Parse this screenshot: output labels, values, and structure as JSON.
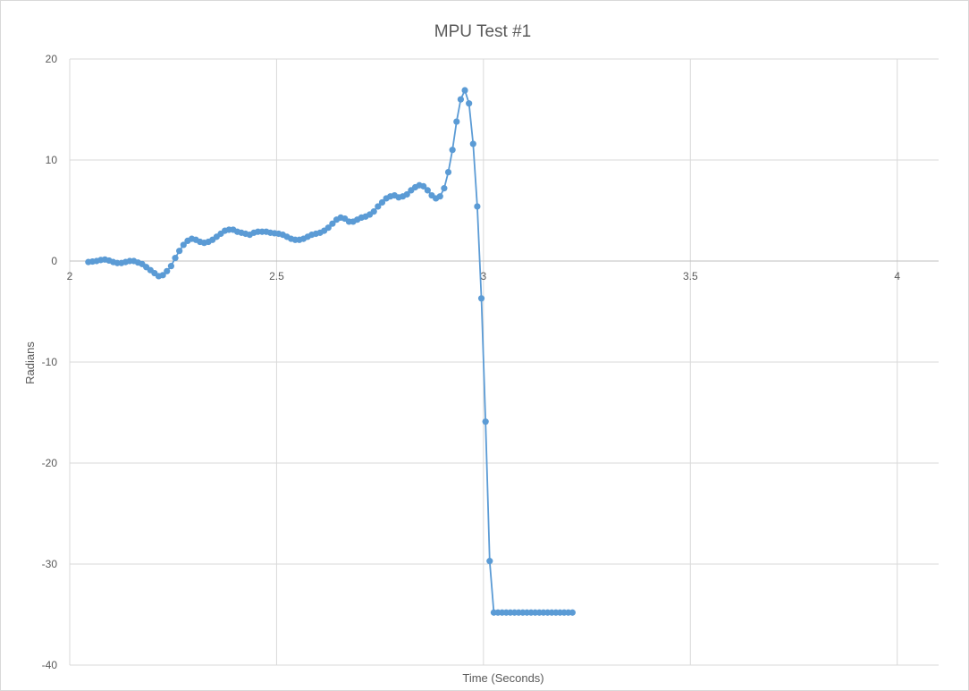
{
  "chart_data": {
    "type": "scatter",
    "title": "MPU Test #1",
    "xlabel": "Time (Seconds)",
    "ylabel": "Radians",
    "xlim": [
      2,
      4.1
    ],
    "ylim": [
      -40,
      20
    ],
    "x_ticks": [
      "2",
      "2.5",
      "3",
      "3.5",
      "4"
    ],
    "y_ticks": [
      "20",
      "10",
      "0",
      "-10",
      "-20",
      "-30",
      "-40"
    ],
    "grid": true,
    "legend": "none",
    "series_color": "#5b9bd5",
    "series": [
      {
        "x": [
          2.045,
          2.055,
          2.065,
          2.075,
          2.085,
          2.095,
          2.105,
          2.115,
          2.125,
          2.135,
          2.145,
          2.155,
          2.165,
          2.175,
          2.185,
          2.195,
          2.205,
          2.215,
          2.225,
          2.235,
          2.245,
          2.255,
          2.265,
          2.275,
          2.285,
          2.295,
          2.305,
          2.315,
          2.325,
          2.335,
          2.345,
          2.355,
          2.365,
          2.375,
          2.385,
          2.395,
          2.405,
          2.415,
          2.425,
          2.435,
          2.445,
          2.455,
          2.465,
          2.475,
          2.485,
          2.495,
          2.505,
          2.515,
          2.525,
          2.535,
          2.545,
          2.555,
          2.565,
          2.575,
          2.585,
          2.595,
          2.605,
          2.615,
          2.625,
          2.635,
          2.645,
          2.655,
          2.665,
          2.675,
          2.685,
          2.695,
          2.705,
          2.715,
          2.725,
          2.735,
          2.745,
          2.755,
          2.765,
          2.775,
          2.785,
          2.795,
          2.805,
          2.815,
          2.825,
          2.835,
          2.845,
          2.855,
          2.865,
          2.875,
          2.885,
          2.895,
          2.905,
          2.915,
          2.925,
          2.935,
          2.945,
          2.955,
          2.965,
          2.975,
          2.985,
          2.995,
          3.005,
          3.015,
          3.025,
          3.035,
          3.045,
          3.055,
          3.065,
          3.075,
          3.085,
          3.095,
          3.105,
          3.115,
          3.125,
          3.135,
          3.145,
          3.155,
          3.165,
          3.175,
          3.185,
          3.195,
          3.205,
          3.215
        ],
        "y": [
          -0.1,
          -0.05,
          0.0,
          0.1,
          0.15,
          0.05,
          -0.1,
          -0.2,
          -0.2,
          -0.1,
          0.0,
          0.0,
          -0.15,
          -0.3,
          -0.6,
          -0.9,
          -1.2,
          -1.5,
          -1.4,
          -1.0,
          -0.5,
          0.3,
          1.0,
          1.6,
          2.0,
          2.2,
          2.1,
          1.9,
          1.8,
          1.9,
          2.1,
          2.4,
          2.7,
          3.0,
          3.1,
          3.1,
          2.9,
          2.8,
          2.7,
          2.6,
          2.8,
          2.9,
          2.9,
          2.9,
          2.8,
          2.75,
          2.7,
          2.6,
          2.4,
          2.2,
          2.1,
          2.1,
          2.2,
          2.4,
          2.6,
          2.7,
          2.8,
          3.0,
          3.3,
          3.7,
          4.1,
          4.3,
          4.2,
          3.9,
          3.9,
          4.1,
          4.3,
          4.4,
          4.6,
          4.9,
          5.4,
          5.8,
          6.2,
          6.4,
          6.5,
          6.3,
          6.4,
          6.6,
          7.0,
          7.3,
          7.5,
          7.4,
          7.0,
          6.5,
          6.2,
          6.4,
          7.2,
          8.8,
          11.0,
          13.8,
          16.0,
          16.9,
          15.6,
          11.6,
          5.4,
          -3.7,
          -15.9,
          -29.7,
          -34.8,
          -34.8,
          -34.8,
          -34.8,
          -34.8,
          -34.8,
          -34.8,
          -34.8,
          -34.8,
          -34.8,
          -34.8,
          -34.8,
          -34.8,
          -34.8,
          -34.8,
          -34.8,
          -34.8,
          -34.8,
          -34.8,
          -34.8
        ]
      }
    ]
  }
}
